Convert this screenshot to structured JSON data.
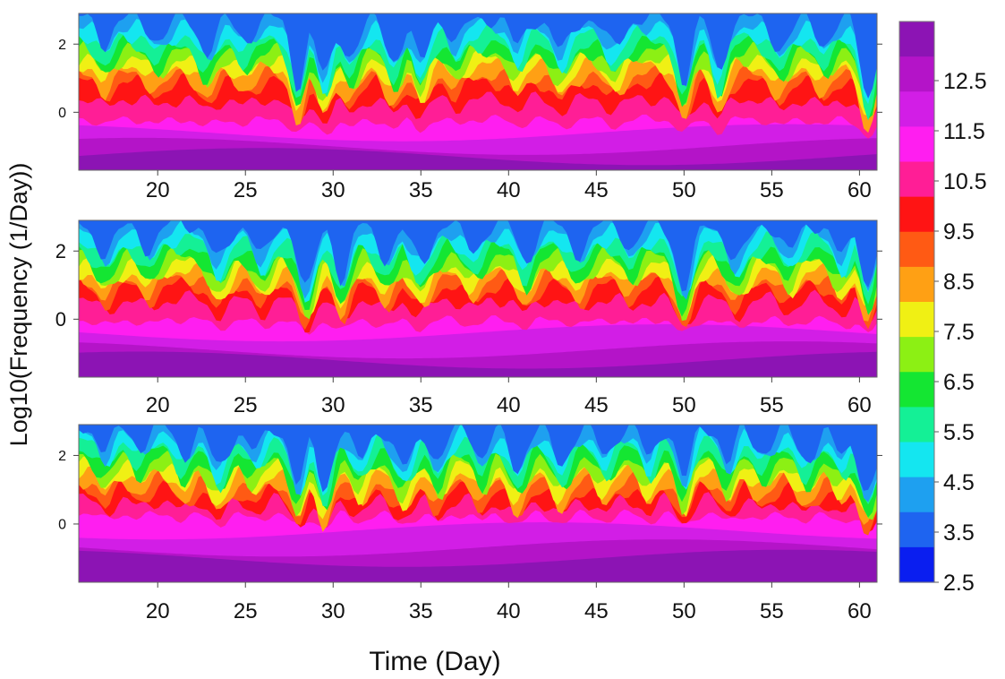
{
  "figure": {
    "ylabel": "Log10(Frequency (1/Day))",
    "xlabel": "Time (Day)"
  },
  "colorbar": {
    "tick_labels": [
      "12.5",
      "11.5",
      "10.5",
      "9.5",
      "8.5",
      "7.5",
      "6.5",
      "5.5",
      "4.5",
      "3.5",
      "2.5"
    ],
    "levels": [
      2.5,
      3.5,
      4.5,
      5.5,
      6.5,
      7.5,
      8.5,
      9.5,
      10.5,
      11.5,
      12.5,
      13.5
    ],
    "colors": [
      "#0a1ef0",
      "#1e64f0",
      "#1ea0f0",
      "#14e6f0",
      "#14f096",
      "#14e632",
      "#8cf014",
      "#f0f014",
      "#ffa014",
      "#ff5a14",
      "#ff1414",
      "#ff1e96",
      "#ff1ef0",
      "#d21ee6",
      "#b414c8",
      "#8c14b4"
    ]
  },
  "chart_data": [
    {
      "type": "heatmap",
      "panel": "top",
      "xlim": [
        15.5,
        61
      ],
      "ylim": [
        -1.7,
        2.9
      ],
      "x_ticks": [
        20,
        25,
        30,
        35,
        40,
        45,
        50,
        55,
        60
      ],
      "y_ticks": [
        0,
        2
      ],
      "x_tick_labels": [
        "20",
        "25",
        "30",
        "35",
        "40",
        "45",
        "50",
        "55",
        "60"
      ],
      "y_tick_labels": [
        "0",
        "2"
      ],
      "peaks": [
        [
          17,
          0.6
        ],
        [
          20,
          0.5
        ],
        [
          22.8,
          0.8
        ],
        [
          25,
          0.5
        ],
        [
          28,
          1.6
        ],
        [
          29.5,
          1.4
        ],
        [
          31,
          0.9
        ],
        [
          33.5,
          1.0
        ],
        [
          35,
          1.1
        ],
        [
          37,
          0.6
        ],
        [
          40.5,
          0.7
        ],
        [
          43,
          0.8
        ],
        [
          46,
          0.7
        ],
        [
          50,
          1.5
        ],
        [
          52,
          1.3
        ],
        [
          55.5,
          0.7
        ],
        [
          58,
          0.6
        ],
        [
          60.5,
          1.9
        ]
      ],
      "bands": [
        [
          -1.3,
          0.9
        ],
        [
          -1.0,
          0.3
        ],
        [
          -0.6,
          0.2
        ],
        [
          -0.2,
          0.5
        ],
        [
          0.4,
          0.8
        ],
        [
          0.9,
          1.2
        ],
        [
          1.1,
          1.5
        ],
        [
          1.4,
          1.6
        ],
        [
          1.6,
          1.7
        ],
        [
          1.8,
          1.8
        ],
        [
          2.0,
          1.9
        ],
        [
          2.3,
          2.0
        ],
        [
          2.55,
          2.1
        ],
        [
          2.75,
          2.2
        ]
      ]
    },
    {
      "type": "heatmap",
      "panel": "middle",
      "xlim": [
        15.5,
        61
      ],
      "ylim": [
        -1.7,
        2.9
      ],
      "x_ticks": [
        20,
        25,
        30,
        35,
        40,
        45,
        50,
        55,
        60
      ],
      "y_ticks": [
        0,
        2
      ],
      "x_tick_labels": [
        "20",
        "25",
        "30",
        "35",
        "40",
        "45",
        "50",
        "55",
        "60"
      ],
      "y_tick_labels": [
        "0",
        "2"
      ],
      "peaks": [
        [
          17,
          0.7
        ],
        [
          19.5,
          0.6
        ],
        [
          23.5,
          0.9
        ],
        [
          26,
          0.8
        ],
        [
          28.5,
          1.6
        ],
        [
          30.5,
          1.3
        ],
        [
          33,
          0.8
        ],
        [
          35,
          0.9
        ],
        [
          38,
          0.6
        ],
        [
          41,
          0.9
        ],
        [
          44,
          0.7
        ],
        [
          47,
          0.6
        ],
        [
          50,
          1.6
        ],
        [
          53,
          0.9
        ],
        [
          56,
          0.7
        ],
        [
          59,
          0.8
        ],
        [
          60.5,
          1.5
        ]
      ],
      "bands": [
        [
          -1.2,
          0.9
        ],
        [
          -0.9,
          0.3
        ],
        [
          -0.4,
          0.2
        ],
        [
          0.0,
          0.5
        ],
        [
          0.6,
          0.9
        ],
        [
          1.0,
          1.3
        ],
        [
          1.25,
          1.55
        ],
        [
          1.45,
          1.7
        ],
        [
          1.65,
          1.75
        ],
        [
          1.85,
          1.85
        ],
        [
          2.1,
          1.9
        ],
        [
          2.35,
          2.0
        ],
        [
          2.6,
          2.1
        ],
        [
          2.8,
          2.2
        ]
      ]
    },
    {
      "type": "heatmap",
      "panel": "bottom",
      "xlim": [
        15.5,
        61
      ],
      "ylim": [
        -1.7,
        2.9
      ],
      "x_ticks": [
        20,
        25,
        30,
        35,
        40,
        45,
        50,
        55,
        60
      ],
      "y_ticks": [
        0,
        2
      ],
      "x_tick_labels": [
        "20",
        "25",
        "30",
        "35",
        "40",
        "45",
        "50",
        "55",
        "60"
      ],
      "y_tick_labels": [
        "0",
        "2"
      ],
      "peaks": [
        [
          17,
          0.6
        ],
        [
          19,
          0.5
        ],
        [
          21.5,
          0.7
        ],
        [
          23.5,
          1.0
        ],
        [
          25.5,
          0.6
        ],
        [
          28,
          1.4
        ],
        [
          29.5,
          1.5
        ],
        [
          31.5,
          0.8
        ],
        [
          34,
          1.0
        ],
        [
          36,
          0.9
        ],
        [
          38.5,
          0.8
        ],
        [
          40.5,
          1.0
        ],
        [
          43,
          0.9
        ],
        [
          45.5,
          0.7
        ],
        [
          48,
          0.8
        ],
        [
          50,
          1.3
        ],
        [
          52.5,
          0.9
        ],
        [
          54.5,
          0.6
        ],
        [
          57,
          0.8
        ],
        [
          59,
          0.7
        ],
        [
          60.5,
          1.6
        ]
      ],
      "bands": [
        [
          -1.0,
          0.8
        ],
        [
          -0.7,
          0.3
        ],
        [
          -0.2,
          0.4
        ],
        [
          0.3,
          0.5
        ],
        [
          0.7,
          0.9
        ],
        [
          1.05,
          1.3
        ],
        [
          1.3,
          1.55
        ],
        [
          1.55,
          1.7
        ],
        [
          1.75,
          1.75
        ],
        [
          1.95,
          1.85
        ],
        [
          2.2,
          1.9
        ],
        [
          2.45,
          2.0
        ],
        [
          2.65,
          2.1
        ],
        [
          2.85,
          2.2
        ]
      ]
    }
  ]
}
